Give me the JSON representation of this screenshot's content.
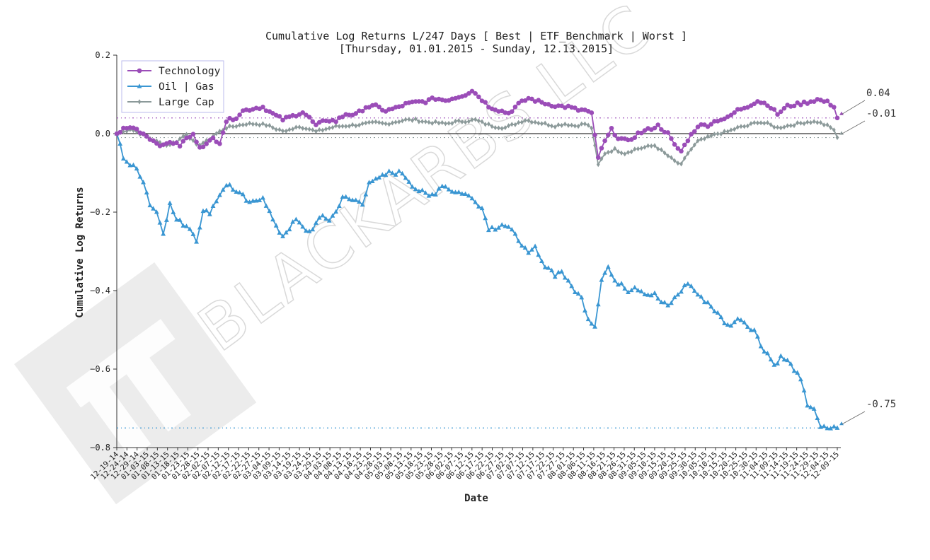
{
  "watermark": {
    "text": "BLACKARBS LLC",
    "color": "#c8c8c8"
  },
  "chart_data": {
    "type": "line",
    "title": "Cumulative Log Returns L/247 Days [ Best | ETF_Benchmark | Worst ]",
    "subtitle": "[Thursday, 01.01.2015 - Sunday, 12.13.2015]",
    "xlabel": "Date",
    "ylabel": "Cumulative Log Returns",
    "ylim": [
      -0.8,
      0.2
    ],
    "yticks": [
      0.2,
      0.0,
      -0.2,
      -0.4,
      -0.6,
      -0.8
    ],
    "ytick_labels": [
      "0.2",
      "0.0",
      "−0.2",
      "−0.4",
      "−0.6",
      "−0.8"
    ],
    "xticks": [
      "12-19-14",
      "12-24-14",
      "12-29-14",
      "01-03-15",
      "01-08-15",
      "01-13-15",
      "01-18-15",
      "01-23-15",
      "01-28-15",
      "02-02-15",
      "02-07-15",
      "02-12-15",
      "02-17-15",
      "02-22-15",
      "02-27-15",
      "03-04-15",
      "03-09-15",
      "03-14-15",
      "03-19-15",
      "03-24-15",
      "03-29-15",
      "04-03-15",
      "04-08-15",
      "04-13-15",
      "04-18-15",
      "04-23-15",
      "04-28-15",
      "05-03-15",
      "05-08-15",
      "05-13-15",
      "05-18-15",
      "05-23-15",
      "05-28-15",
      "06-02-15",
      "06-07-15",
      "06-12-15",
      "06-17-15",
      "06-22-15",
      "06-27-15",
      "07-02-15",
      "07-07-15",
      "07-12-15",
      "07-17-15",
      "07-22-15",
      "07-27-15",
      "08-01-15",
      "08-06-15",
      "08-11-15",
      "08-16-15",
      "08-21-15",
      "08-26-15",
      "08-31-15",
      "09-05-15",
      "09-10-15",
      "09-15-15",
      "09-20-15",
      "09-25-15",
      "09-30-15",
      "10-05-15",
      "10-10-15",
      "10-15-15",
      "10-20-15",
      "10-25-15",
      "10-30-15",
      "11-04-15",
      "11-09-15",
      "11-14-15",
      "11-19-15",
      "11-24-15",
      "11-29-15",
      "12-04-15",
      "12-09-15"
    ],
    "grid": false,
    "legend_position": "top-left",
    "zero_line": true,
    "series": [
      {
        "name": "Technology",
        "color": "#9b4db8",
        "marker": "circle",
        "final_value": 0.04,
        "final_label": "0.04",
        "keypoints": [
          [
            0,
            0.0
          ],
          [
            2,
            0.012
          ],
          [
            5,
            0.016
          ],
          [
            8,
            0.0
          ],
          [
            11,
            -0.018
          ],
          [
            14,
            -0.032
          ],
          [
            16,
            -0.02
          ],
          [
            19,
            -0.03
          ],
          [
            21,
            -0.012
          ],
          [
            23,
            -0.004
          ],
          [
            25,
            -0.032
          ],
          [
            27,
            -0.028
          ],
          [
            29,
            -0.012
          ],
          [
            31,
            -0.022
          ],
          [
            33,
            0.032
          ],
          [
            36,
            0.042
          ],
          [
            38,
            0.058
          ],
          [
            41,
            0.064
          ],
          [
            44,
            0.068
          ],
          [
            47,
            0.05
          ],
          [
            50,
            0.036
          ],
          [
            53,
            0.045
          ],
          [
            56,
            0.055
          ],
          [
            58,
            0.04
          ],
          [
            60,
            0.02
          ],
          [
            63,
            0.035
          ],
          [
            66,
            0.032
          ],
          [
            69,
            0.05
          ],
          [
            72,
            0.048
          ],
          [
            75,
            0.068
          ],
          [
            78,
            0.07
          ],
          [
            81,
            0.058
          ],
          [
            84,
            0.065
          ],
          [
            87,
            0.075
          ],
          [
            90,
            0.08
          ],
          [
            93,
            0.082
          ],
          [
            96,
            0.09
          ],
          [
            99,
            0.085
          ],
          [
            102,
            0.092
          ],
          [
            105,
            0.1
          ],
          [
            107,
            0.11
          ],
          [
            109,
            0.095
          ],
          [
            112,
            0.07
          ],
          [
            115,
            0.06
          ],
          [
            118,
            0.052
          ],
          [
            121,
            0.075
          ],
          [
            124,
            0.09
          ],
          [
            127,
            0.082
          ],
          [
            130,
            0.075
          ],
          [
            133,
            0.07
          ],
          [
            136,
            0.068
          ],
          [
            139,
            0.06
          ],
          [
            141,
            0.06
          ],
          [
            143,
            0.05
          ],
          [
            145,
            -0.06
          ],
          [
            147,
            -0.02
          ],
          [
            149,
            0.01
          ],
          [
            151,
            -0.01
          ],
          [
            154,
            -0.02
          ],
          [
            157,
            0.0
          ],
          [
            160,
            0.01
          ],
          [
            163,
            0.02
          ],
          [
            166,
            0.0
          ],
          [
            168,
            -0.03
          ],
          [
            170,
            -0.045
          ],
          [
            172,
            -0.015
          ],
          [
            175,
            0.02
          ],
          [
            178,
            0.022
          ],
          [
            181,
            0.035
          ],
          [
            184,
            0.04
          ],
          [
            187,
            0.06
          ],
          [
            190,
            0.07
          ],
          [
            193,
            0.083
          ],
          [
            196,
            0.075
          ],
          [
            199,
            0.05
          ],
          [
            202,
            0.07
          ],
          [
            205,
            0.075
          ],
          [
            208,
            0.08
          ],
          [
            211,
            0.087
          ],
          [
            214,
            0.08
          ],
          [
            216,
            0.07
          ],
          [
            217,
            0.04
          ]
        ]
      },
      {
        "name": "Oil | Gas",
        "color": "#3a96d2",
        "marker": "triangle",
        "final_value": -0.75,
        "final_label": "-0.75",
        "keypoints": [
          [
            0,
            0.0
          ],
          [
            1,
            -0.03
          ],
          [
            2,
            -0.06
          ],
          [
            4,
            -0.08
          ],
          [
            6,
            -0.09
          ],
          [
            8,
            -0.12
          ],
          [
            10,
            -0.18
          ],
          [
            12,
            -0.2
          ],
          [
            14,
            -0.25
          ],
          [
            16,
            -0.18
          ],
          [
            18,
            -0.22
          ],
          [
            20,
            -0.23
          ],
          [
            22,
            -0.24
          ],
          [
            24,
            -0.27
          ],
          [
            26,
            -0.2
          ],
          [
            28,
            -0.2
          ],
          [
            30,
            -0.17
          ],
          [
            32,
            -0.14
          ],
          [
            34,
            -0.13
          ],
          [
            36,
            -0.15
          ],
          [
            38,
            -0.16
          ],
          [
            40,
            -0.18
          ],
          [
            42,
            -0.17
          ],
          [
            44,
            -0.16
          ],
          [
            46,
            -0.2
          ],
          [
            48,
            -0.24
          ],
          [
            50,
            -0.26
          ],
          [
            52,
            -0.24
          ],
          [
            54,
            -0.22
          ],
          [
            56,
            -0.24
          ],
          [
            58,
            -0.25
          ],
          [
            60,
            -0.23
          ],
          [
            62,
            -0.21
          ],
          [
            64,
            -0.22
          ],
          [
            66,
            -0.2
          ],
          [
            68,
            -0.16
          ],
          [
            70,
            -0.17
          ],
          [
            72,
            -0.17
          ],
          [
            74,
            -0.18
          ],
          [
            76,
            -0.12
          ],
          [
            78,
            -0.12
          ],
          [
            80,
            -0.11
          ],
          [
            82,
            -0.1
          ],
          [
            84,
            -0.1
          ],
          [
            86,
            -0.1
          ],
          [
            88,
            -0.12
          ],
          [
            90,
            -0.14
          ],
          [
            92,
            -0.15
          ],
          [
            94,
            -0.16
          ],
          [
            96,
            -0.15
          ],
          [
            98,
            -0.13
          ],
          [
            100,
            -0.14
          ],
          [
            102,
            -0.15
          ],
          [
            104,
            -0.15
          ],
          [
            106,
            -0.16
          ],
          [
            108,
            -0.17
          ],
          [
            110,
            -0.19
          ],
          [
            112,
            -0.24
          ],
          [
            114,
            -0.24
          ],
          [
            116,
            -0.23
          ],
          [
            118,
            -0.24
          ],
          [
            120,
            -0.26
          ],
          [
            122,
            -0.28
          ],
          [
            124,
            -0.31
          ],
          [
            126,
            -0.29
          ],
          [
            128,
            -0.33
          ],
          [
            130,
            -0.34
          ],
          [
            132,
            -0.36
          ],
          [
            134,
            -0.35
          ],
          [
            136,
            -0.38
          ],
          [
            138,
            -0.4
          ],
          [
            140,
            -0.42
          ],
          [
            142,
            -0.47
          ],
          [
            144,
            -0.49
          ],
          [
            146,
            -0.37
          ],
          [
            148,
            -0.34
          ],
          [
            150,
            -0.38
          ],
          [
            152,
            -0.38
          ],
          [
            154,
            -0.4
          ],
          [
            156,
            -0.39
          ],
          [
            158,
            -0.4
          ],
          [
            160,
            -0.41
          ],
          [
            162,
            -0.41
          ],
          [
            164,
            -0.43
          ],
          [
            166,
            -0.44
          ],
          [
            168,
            -0.42
          ],
          [
            170,
            -0.4
          ],
          [
            172,
            -0.38
          ],
          [
            174,
            -0.4
          ],
          [
            176,
            -0.42
          ],
          [
            178,
            -0.43
          ],
          [
            180,
            -0.45
          ],
          [
            182,
            -0.47
          ],
          [
            184,
            -0.49
          ],
          [
            186,
            -0.48
          ],
          [
            188,
            -0.47
          ],
          [
            190,
            -0.49
          ],
          [
            192,
            -0.5
          ],
          [
            194,
            -0.54
          ],
          [
            196,
            -0.56
          ],
          [
            198,
            -0.59
          ],
          [
            200,
            -0.57
          ],
          [
            202,
            -0.58
          ],
          [
            204,
            -0.6
          ],
          [
            206,
            -0.63
          ],
          [
            208,
            -0.69
          ],
          [
            210,
            -0.7
          ],
          [
            211,
            -0.73
          ],
          [
            212,
            -0.75
          ]
        ]
      },
      {
        "name": "Large Cap",
        "color": "#8c9a9a",
        "marker": "diamond",
        "final_value": -0.01,
        "final_label": "-0.01",
        "keypoints": [
          [
            0,
            0.0
          ],
          [
            2,
            0.005
          ],
          [
            4,
            0.012
          ],
          [
            6,
            0.005
          ],
          [
            9,
            -0.008
          ],
          [
            12,
            -0.02
          ],
          [
            15,
            -0.03
          ],
          [
            18,
            -0.02
          ],
          [
            21,
            0.0
          ],
          [
            24,
            -0.03
          ],
          [
            27,
            -0.02
          ],
          [
            30,
            0.0
          ],
          [
            33,
            0.015
          ],
          [
            36,
            0.02
          ],
          [
            39,
            0.025
          ],
          [
            42,
            0.025
          ],
          [
            45,
            0.022
          ],
          [
            48,
            0.012
          ],
          [
            51,
            0.005
          ],
          [
            54,
            0.018
          ],
          [
            57,
            0.015
          ],
          [
            60,
            0.005
          ],
          [
            63,
            0.012
          ],
          [
            66,
            0.018
          ],
          [
            69,
            0.02
          ],
          [
            72,
            0.022
          ],
          [
            75,
            0.025
          ],
          [
            78,
            0.028
          ],
          [
            81,
            0.025
          ],
          [
            84,
            0.03
          ],
          [
            87,
            0.035
          ],
          [
            90,
            0.035
          ],
          [
            93,
            0.03
          ],
          [
            96,
            0.028
          ],
          [
            99,
            0.025
          ],
          [
            102,
            0.03
          ],
          [
            105,
            0.032
          ],
          [
            108,
            0.035
          ],
          [
            111,
            0.025
          ],
          [
            114,
            0.018
          ],
          [
            117,
            0.015
          ],
          [
            120,
            0.025
          ],
          [
            123,
            0.035
          ],
          [
            126,
            0.03
          ],
          [
            129,
            0.025
          ],
          [
            132,
            0.02
          ],
          [
            135,
            0.025
          ],
          [
            138,
            0.02
          ],
          [
            141,
            0.025
          ],
          [
            143,
            0.015
          ],
          [
            145,
            -0.08
          ],
          [
            147,
            -0.05
          ],
          [
            150,
            -0.04
          ],
          [
            153,
            -0.05
          ],
          [
            156,
            -0.04
          ],
          [
            159,
            -0.035
          ],
          [
            162,
            -0.03
          ],
          [
            165,
            -0.05
          ],
          [
            168,
            -0.07
          ],
          [
            170,
            -0.08
          ],
          [
            172,
            -0.05
          ],
          [
            175,
            -0.02
          ],
          [
            178,
            -0.01
          ],
          [
            181,
            0.0
          ],
          [
            184,
            0.005
          ],
          [
            187,
            0.015
          ],
          [
            190,
            0.02
          ],
          [
            193,
            0.03
          ],
          [
            196,
            0.025
          ],
          [
            199,
            0.015
          ],
          [
            202,
            0.02
          ],
          [
            205,
            0.025
          ],
          [
            208,
            0.03
          ],
          [
            211,
            0.03
          ],
          [
            214,
            0.02
          ],
          [
            216,
            0.01
          ],
          [
            217,
            -0.01
          ]
        ]
      }
    ]
  }
}
